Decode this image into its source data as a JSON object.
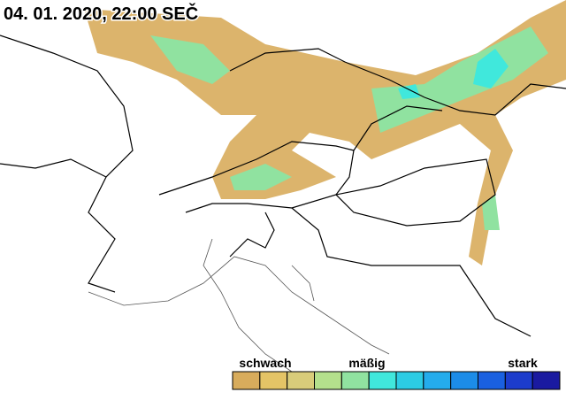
{
  "header": {
    "title": "04. 01. 2020, 22:00 SEČ"
  },
  "legend": {
    "labels": [
      "schwach",
      "mäßig",
      "stark"
    ],
    "colors": [
      "#d8ac5c",
      "#e4c466",
      "#d8cc7a",
      "#b4e08c",
      "#90e2a0",
      "#40e8dc",
      "#2ccce4",
      "#24acec",
      "#1c8ce8",
      "#1a60e0",
      "#1c3ccc",
      "#1a1aa0"
    ]
  }
}
